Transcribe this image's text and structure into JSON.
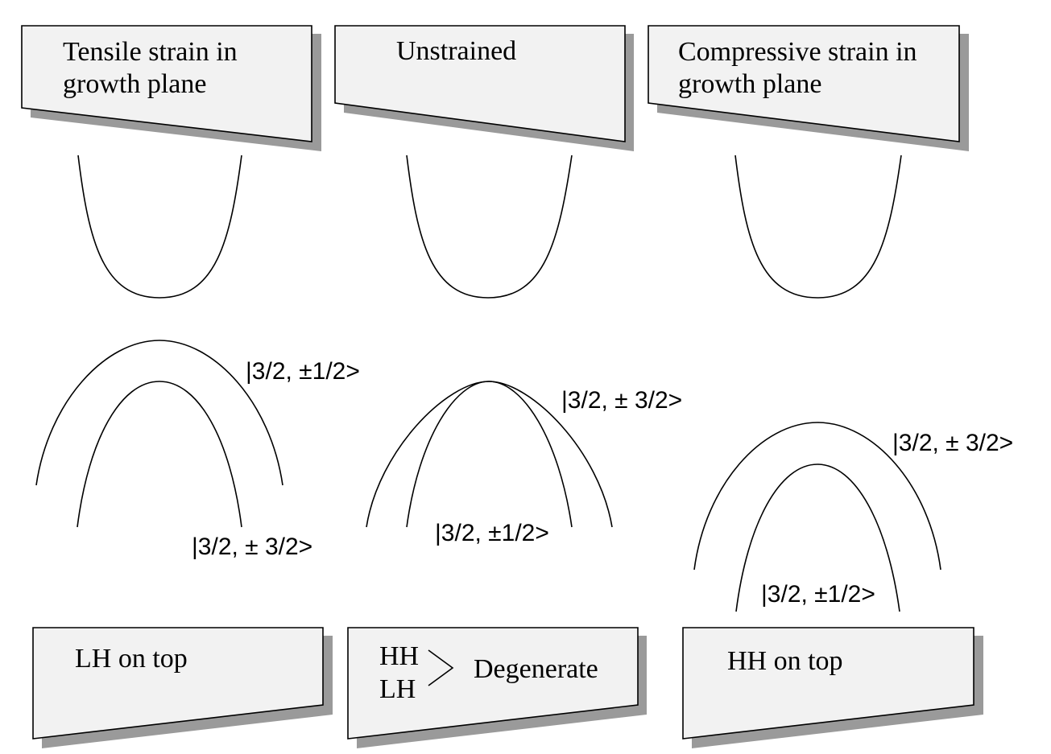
{
  "panels": [
    {
      "title_lines": [
        "Tensile strain in",
        "growth plane"
      ],
      "upper_band_label": "|3/2, ±1/2>",
      "lower_band_label": "|3/2, ± 3/2>",
      "result_label": "LH on top"
    },
    {
      "title_lines": [
        "Unstrained"
      ],
      "upper_band_label": "|3/2, ± 3/2>",
      "lower_band_label": "|3/2, ±1/2>",
      "result_hh": "HH",
      "result_lh": "LH",
      "result_label": "Degenerate"
    },
    {
      "title_lines": [
        "Compressive strain in",
        "growth plane"
      ],
      "upper_band_label": "|3/2, ± 3/2>",
      "lower_band_label": "|3/2, ±1/2>",
      "result_label": "HH on top"
    }
  ]
}
